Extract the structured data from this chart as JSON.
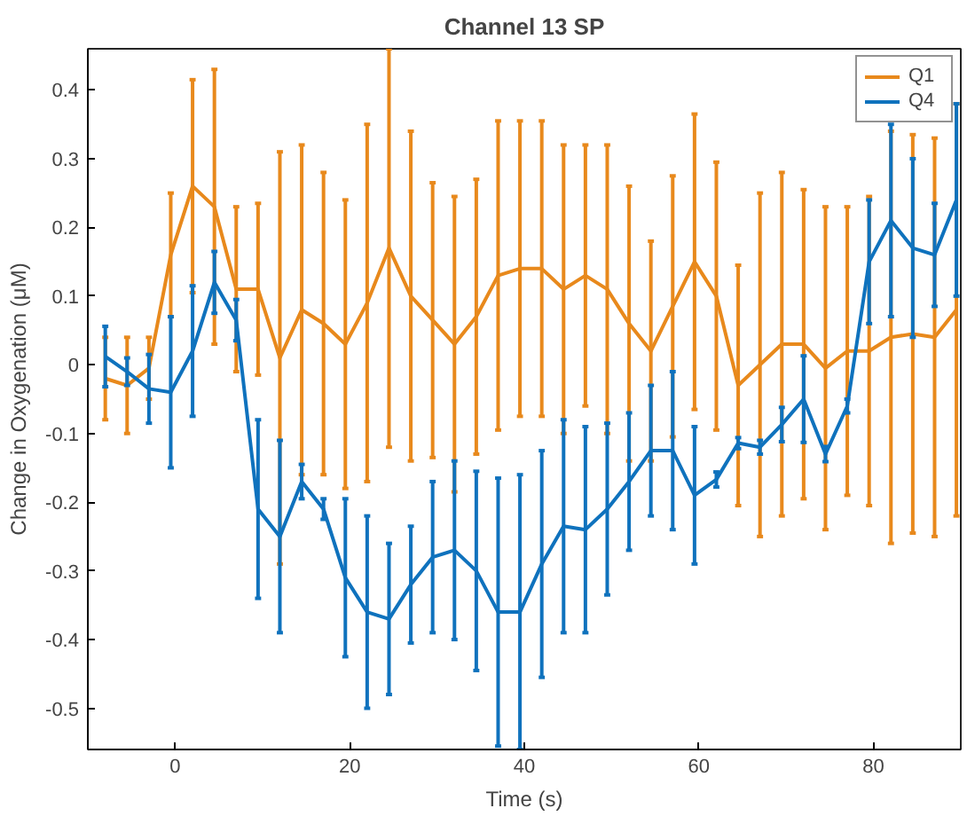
{
  "chart_data": {
    "type": "line",
    "title": "Channel 13 SP",
    "xlabel": "Time (s)",
    "ylabel": "Change in Oxygenation (μM)",
    "x": [
      -8,
      -5.5,
      -3,
      -0.5,
      2,
      4.5,
      7,
      9.5,
      12,
      14.5,
      17,
      19.5,
      22,
      24.5,
      27,
      29.5,
      32,
      34.5,
      37,
      39.5,
      42,
      44.5,
      47,
      49.5,
      52,
      54.5,
      57,
      59.5,
      62,
      64.5,
      67,
      69.5,
      72,
      74.5,
      77,
      79.5,
      82,
      84.5,
      87,
      89.5
    ],
    "series": [
      {
        "name": "Q1",
        "color": "#e8891c",
        "values": [
          -0.02,
          -0.03,
          -0.005,
          0.16,
          0.26,
          0.23,
          0.11,
          0.11,
          0.01,
          0.08,
          0.06,
          0.03,
          0.09,
          0.17,
          0.1,
          0.065,
          0.03,
          0.07,
          0.13,
          0.14,
          0.14,
          0.11,
          0.13,
          0.11,
          0.06,
          0.02,
          0.085,
          0.15,
          0.1,
          -0.03,
          0.0,
          0.03,
          0.03,
          -0.005,
          0.02,
          0.02,
          0.04,
          0.045,
          0.04,
          0.08
        ],
        "errors": [
          0.06,
          0.07,
          0.045,
          0.09,
          0.155,
          0.2,
          0.12,
          0.125,
          0.3,
          0.24,
          0.22,
          0.21,
          0.26,
          0.29,
          0.24,
          0.2,
          0.215,
          0.2,
          0.225,
          0.215,
          0.215,
          0.21,
          0.19,
          0.21,
          0.2,
          0.16,
          0.19,
          0.215,
          0.195,
          0.175,
          0.25,
          0.25,
          0.225,
          0.235,
          0.21,
          0.225,
          0.3,
          0.29,
          0.29,
          0.3
        ]
      },
      {
        "name": "Q4",
        "color": "#0f72bd",
        "values": [
          0.012,
          -0.01,
          -0.035,
          -0.04,
          0.02,
          0.12,
          0.065,
          -0.21,
          -0.25,
          -0.17,
          -0.21,
          -0.31,
          -0.36,
          -0.37,
          -0.32,
          -0.28,
          -0.27,
          -0.3,
          -0.36,
          -0.36,
          -0.29,
          -0.235,
          -0.24,
          -0.21,
          -0.17,
          -0.125,
          -0.125,
          -0.19,
          -0.167,
          -0.114,
          -0.12,
          -0.087,
          -0.05,
          -0.13,
          -0.06,
          0.15,
          0.21,
          0.17,
          0.16,
          0.24
        ],
        "errors": [
          0.044,
          0.02,
          0.05,
          0.11,
          0.095,
          0.045,
          0.03,
          0.13,
          0.14,
          0.025,
          0.015,
          0.115,
          0.14,
          0.11,
          0.085,
          0.11,
          0.13,
          0.145,
          0.195,
          0.2,
          0.165,
          0.155,
          0.15,
          0.125,
          0.1,
          0.095,
          0.115,
          0.1,
          0.011,
          0.008,
          0.01,
          0.025,
          0.063,
          0.011,
          0.01,
          0.09,
          0.14,
          0.13,
          0.075,
          0.14
        ]
      }
    ],
    "xlim": [
      -10,
      90
    ],
    "ylim": [
      -0.56,
      0.46
    ],
    "xticks": [
      0,
      20,
      40,
      60,
      80
    ],
    "yticks": [
      -0.5,
      -0.4,
      -0.3,
      -0.2,
      -0.1,
      0,
      0.1,
      0.2,
      0.3,
      0.4
    ],
    "legend": "top right",
    "grid": false,
    "marker": "none",
    "line_style": "solid"
  }
}
